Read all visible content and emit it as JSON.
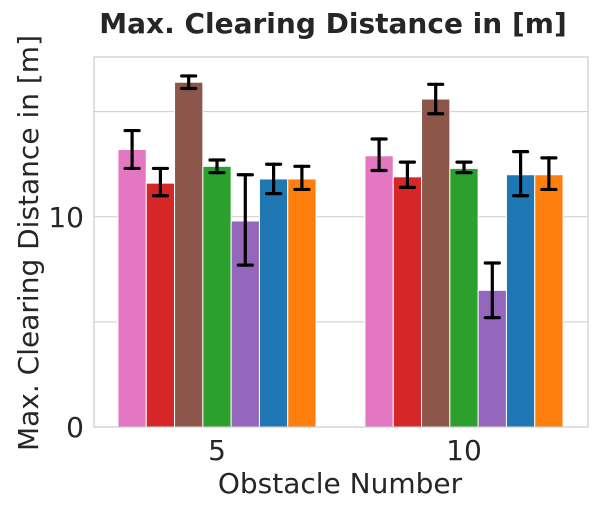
{
  "chart_data": {
    "type": "bar",
    "title": "Max. Clearing Distance in [m]",
    "xlabel": "Obstacle Number",
    "ylabel": "Max. Clearing Distance in [m]",
    "categories": [
      "5",
      "10"
    ],
    "ylim": [
      0,
      17.6
    ],
    "yticks": [
      0,
      10
    ],
    "ytick_labels": [
      "0",
      "10"
    ],
    "minor_grid": [
      5,
      15
    ],
    "grid": true,
    "series": [
      {
        "color": "#e377c2",
        "values": [
          13.2,
          12.9
        ],
        "err_low": [
          12.3,
          12.2
        ],
        "err_high": [
          14.1,
          13.7
        ]
      },
      {
        "color": "#d62728",
        "values": [
          11.6,
          11.9
        ],
        "err_low": [
          11.0,
          11.4
        ],
        "err_high": [
          12.3,
          12.6
        ]
      },
      {
        "color": "#8c564b",
        "values": [
          16.4,
          15.6
        ],
        "err_low": [
          16.1,
          14.9
        ],
        "err_high": [
          16.7,
          16.3
        ]
      },
      {
        "color": "#2ca02c",
        "values": [
          12.4,
          12.3
        ],
        "err_low": [
          12.1,
          12.1
        ],
        "err_high": [
          12.7,
          12.6
        ]
      },
      {
        "color": "#9467bd",
        "values": [
          9.8,
          6.5
        ],
        "err_low": [
          7.7,
          5.2
        ],
        "err_high": [
          12.0,
          7.8
        ]
      },
      {
        "color": "#1f77b4",
        "values": [
          11.8,
          12.0
        ],
        "err_low": [
          11.1,
          11.0
        ],
        "err_high": [
          12.5,
          13.1
        ]
      },
      {
        "color": "#ff7f0e",
        "values": [
          11.8,
          12.0
        ],
        "err_low": [
          11.3,
          11.3
        ],
        "err_high": [
          12.4,
          12.8
        ]
      }
    ]
  }
}
